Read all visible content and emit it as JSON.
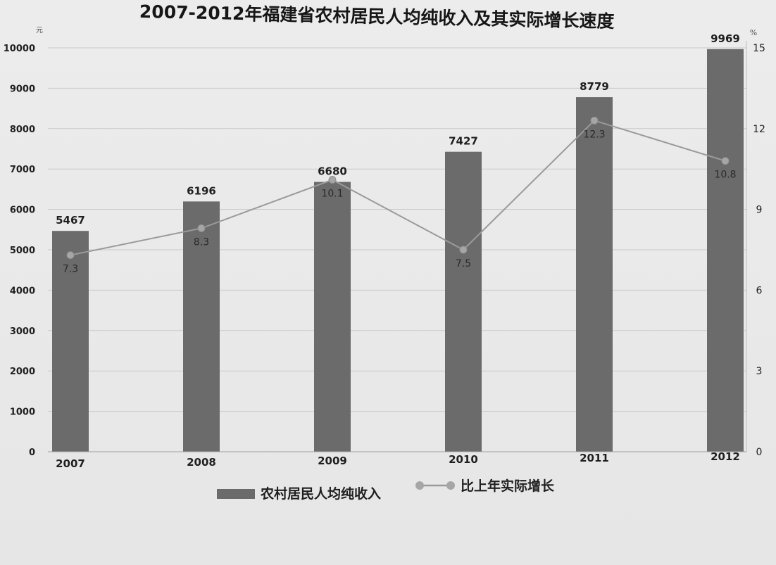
{
  "chart_data": {
    "type": "bar",
    "title": "2007-2012年福建省农村居民人均纯收入及其实际增长速度",
    "categories": [
      "2007",
      "2008",
      "2009",
      "2010",
      "2011",
      "2012"
    ],
    "series": [
      {
        "name": "农村居民人均纯收入",
        "type": "bar",
        "axis": "left",
        "values": [
          5467,
          6196,
          6680,
          7427,
          8779,
          9969
        ]
      },
      {
        "name": "比上年实际增长",
        "type": "line",
        "axis": "right",
        "values": [
          7.3,
          8.3,
          10.1,
          7.5,
          12.3,
          10.8
        ]
      }
    ],
    "left_axis": {
      "unit": "元",
      "ylim": [
        0,
        10000
      ],
      "ticks": [
        0,
        1000,
        2000,
        3000,
        4000,
        5000,
        6000,
        7000,
        8000,
        9000,
        10000
      ]
    },
    "right_axis": {
      "unit": "%",
      "ylim": [
        0,
        15
      ],
      "ticks": [
        0,
        3,
        6,
        9,
        12,
        15
      ]
    },
    "grid": true,
    "legend_position": "bottom-center",
    "colors": {
      "bar": "#6b6b6b",
      "line": "#9a9a9a",
      "marker": "#a6a6a6",
      "text": "#1f1f1f",
      "grid": "#c9c9c9"
    }
  }
}
